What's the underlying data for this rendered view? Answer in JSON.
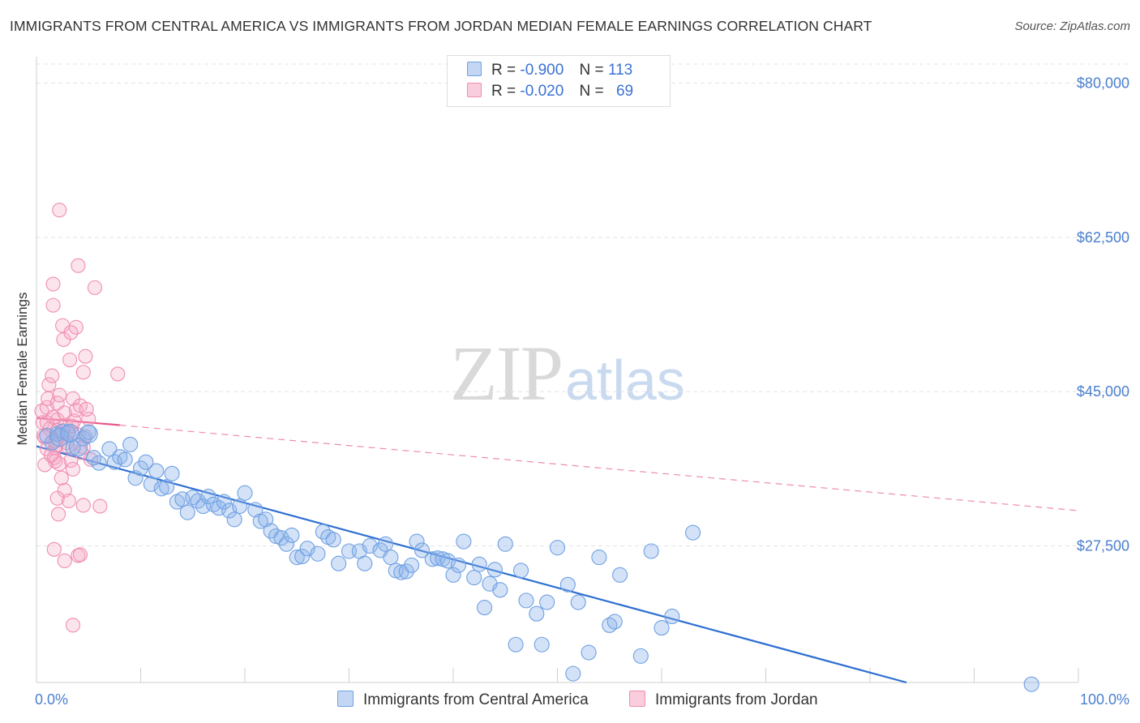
{
  "header": {
    "title": "IMMIGRANTS FROM CENTRAL AMERICA VS IMMIGRANTS FROM JORDAN MEDIAN FEMALE EARNINGS CORRELATION CHART",
    "source": "Source: ZipAtlas.com"
  },
  "watermark": {
    "zip": "ZIP",
    "atlas": "atlas"
  },
  "legend": {
    "rows": [
      {
        "r_label": "R =",
        "r_value": "-0.900",
        "n_label": "N =",
        "n_value": "113",
        "color": "#6fa0e3"
      },
      {
        "r_label": "R =",
        "r_value": "-0.020",
        "n_label": "N =",
        "n_value": "69",
        "color": "#f08db0"
      }
    ]
  },
  "chart_data": {
    "type": "scatter",
    "title": "IMMIGRANTS FROM CENTRAL AMERICA VS IMMIGRANTS FROM JORDAN MEDIAN FEMALE EARNINGS CORRELATION CHART",
    "xlabel": "",
    "ylabel": "Median Female Earnings",
    "xlim": [
      0,
      100
    ],
    "ylim": [
      12000,
      83000
    ],
    "x_tick_labels": [
      "0.0%",
      "100.0%"
    ],
    "y_ticks": [
      27500,
      45000,
      62500,
      80000
    ],
    "y_tick_labels": [
      "$27,500",
      "$45,000",
      "$62,500",
      "$80,000"
    ],
    "grid": true,
    "legend_position": "top-center",
    "series": [
      {
        "name": "Immigrants from Central America",
        "color": "#6fa0e3",
        "trend": {
          "x": [
            0,
            83.5
          ],
          "y": [
            38800,
            12000
          ]
        },
        "points": [
          [
            1,
            40000
          ],
          [
            1.5,
            39200
          ],
          [
            2,
            40200
          ],
          [
            2.5,
            40500
          ],
          [
            3,
            40300
          ],
          [
            3.5,
            38600
          ],
          [
            4.5,
            39700
          ],
          [
            5,
            40400
          ],
          [
            5.5,
            37500
          ],
          [
            6,
            36900
          ],
          [
            7,
            38500
          ],
          [
            7.5,
            37000
          ],
          [
            8,
            37600
          ],
          [
            8.5,
            37300
          ],
          [
            9,
            39000
          ],
          [
            9.5,
            35200
          ],
          [
            10,
            36300
          ],
          [
            10.5,
            37000
          ],
          [
            11,
            34500
          ],
          [
            11.5,
            36000
          ],
          [
            12,
            34000
          ],
          [
            12.5,
            34200
          ],
          [
            13,
            35700
          ],
          [
            13.5,
            32500
          ],
          [
            14,
            32800
          ],
          [
            14.5,
            31300
          ],
          [
            15,
            33000
          ],
          [
            15.5,
            32600
          ],
          [
            16,
            32000
          ],
          [
            16.5,
            33100
          ],
          [
            17,
            32200
          ],
          [
            17.5,
            31800
          ],
          [
            18,
            32500
          ],
          [
            18.5,
            31500
          ],
          [
            19,
            30500
          ],
          [
            19.5,
            32000
          ],
          [
            20,
            33500
          ],
          [
            21,
            31600
          ],
          [
            21.5,
            30300
          ],
          [
            22,
            30500
          ],
          [
            22.5,
            29200
          ],
          [
            23,
            28600
          ],
          [
            23.5,
            28400
          ],
          [
            24,
            27700
          ],
          [
            24.5,
            28700
          ],
          [
            25,
            26200
          ],
          [
            25.5,
            26300
          ],
          [
            26,
            27200
          ],
          [
            27,
            26600
          ],
          [
            27.5,
            29100
          ],
          [
            28,
            28500
          ],
          [
            28.5,
            28200
          ],
          [
            29,
            25500
          ],
          [
            30,
            26900
          ],
          [
            31,
            26900
          ],
          [
            31.5,
            25500
          ],
          [
            32,
            27500
          ],
          [
            33,
            27000
          ],
          [
            33.5,
            27700
          ],
          [
            34,
            26200
          ],
          [
            34.5,
            24700
          ],
          [
            35,
            24500
          ],
          [
            35.5,
            24600
          ],
          [
            36,
            25300
          ],
          [
            36.5,
            28000
          ],
          [
            37,
            27000
          ],
          [
            38,
            26000
          ],
          [
            38.5,
            26100
          ],
          [
            39,
            26000
          ],
          [
            39.5,
            25800
          ],
          [
            40,
            24200
          ],
          [
            40.5,
            25300
          ],
          [
            41,
            28000
          ],
          [
            42,
            23900
          ],
          [
            42.5,
            25400
          ],
          [
            43,
            20500
          ],
          [
            43.5,
            23200
          ],
          [
            44,
            24800
          ],
          [
            44.5,
            22500
          ],
          [
            45,
            27700
          ],
          [
            46,
            16300
          ],
          [
            46.5,
            24700
          ],
          [
            47,
            21300
          ],
          [
            48,
            19800
          ],
          [
            48.5,
            16300
          ],
          [
            49,
            21100
          ],
          [
            50,
            27300
          ],
          [
            51,
            23100
          ],
          [
            51.5,
            13000
          ],
          [
            52,
            21100
          ],
          [
            53,
            15400
          ],
          [
            54,
            26200
          ],
          [
            55,
            18500
          ],
          [
            55.5,
            18900
          ],
          [
            56,
            24200
          ],
          [
            58,
            15000
          ],
          [
            59,
            26900
          ],
          [
            60,
            18200
          ],
          [
            61,
            19500
          ],
          [
            63,
            29000
          ],
          [
            95.5,
            11800
          ]
        ]
      },
      {
        "name": "Immigrants from Jordan",
        "color": "#f08db0",
        "trend": {
          "x": [
            0,
            8
          ],
          "y": [
            42000,
            41200
          ]
        },
        "trend_extension": {
          "x": [
            8,
            100
          ],
          "y": [
            41200,
            31500
          ]
        },
        "points": [
          [
            0.5,
            42800
          ],
          [
            0.6,
            41500
          ],
          [
            0.8,
            39800
          ],
          [
            1,
            38500
          ],
          [
            1,
            43200
          ],
          [
            1.1,
            44200
          ],
          [
            1.3,
            40800
          ],
          [
            1.2,
            45800
          ],
          [
            1.5,
            46800
          ],
          [
            1.6,
            42100
          ],
          [
            1.7,
            37500
          ],
          [
            1.8,
            38600
          ],
          [
            2,
            41800
          ],
          [
            2,
            43700
          ],
          [
            2.2,
            44600
          ],
          [
            2.3,
            40200
          ],
          [
            2.5,
            39900
          ],
          [
            2.7,
            42600
          ],
          [
            2.8,
            41200
          ],
          [
            3,
            38800
          ],
          [
            3.1,
            40500
          ],
          [
            3.3,
            37200
          ],
          [
            3.5,
            44200
          ],
          [
            3.6,
            41700
          ],
          [
            3.8,
            42900
          ],
          [
            4,
            40100
          ],
          [
            4.2,
            43400
          ],
          [
            4.5,
            38700
          ],
          [
            4.7,
            39900
          ],
          [
            5,
            41900
          ],
          [
            5.2,
            37300
          ],
          [
            1.6,
            57200
          ],
          [
            1.6,
            54800
          ],
          [
            2.6,
            50900
          ],
          [
            2.5,
            52500
          ],
          [
            3.2,
            48600
          ],
          [
            4,
            59300
          ],
          [
            4.5,
            47200
          ],
          [
            3.8,
            52300
          ],
          [
            3.3,
            51700
          ],
          [
            4.7,
            49000
          ],
          [
            4.8,
            43000
          ],
          [
            5.6,
            56800
          ],
          [
            7.8,
            47000
          ],
          [
            1.9,
            38900
          ],
          [
            1.8,
            37100
          ],
          [
            2.2,
            36800
          ],
          [
            2.4,
            35200
          ],
          [
            2.7,
            33800
          ],
          [
            3.1,
            32600
          ],
          [
            3.5,
            36200
          ],
          [
            2.0,
            32900
          ],
          [
            2.1,
            31100
          ],
          [
            4.5,
            32100
          ],
          [
            6.1,
            32000
          ],
          [
            1.7,
            27100
          ],
          [
            2.7,
            25800
          ],
          [
            4.0,
            26400
          ],
          [
            4.2,
            26500
          ],
          [
            3.5,
            18500
          ],
          [
            0.8,
            36700
          ],
          [
            0.7,
            40000
          ],
          [
            1.0,
            41500
          ],
          [
            1.4,
            37800
          ],
          [
            2.0,
            40600
          ],
          [
            2.9,
            39200
          ],
          [
            3.4,
            41100
          ],
          [
            4.3,
            38100
          ],
          [
            1.8,
            39400
          ],
          [
            2.2,
            65600
          ]
        ]
      }
    ]
  },
  "bottom_legend": {
    "items": [
      {
        "label": "Immigrants from Central America",
        "color": "#6fa0e3"
      },
      {
        "label": "Immigrants from Jordan",
        "color": "#f08db0"
      }
    ]
  }
}
